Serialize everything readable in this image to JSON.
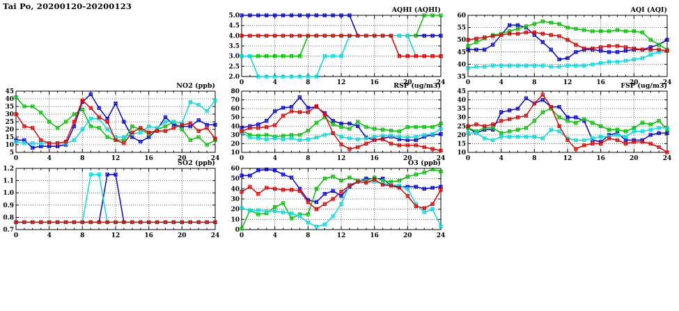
{
  "page_title": "Tai Po, 20200120-20200123",
  "station": "Tai Po",
  "date_range": "20200120-20200123",
  "colors": {
    "blue": "#0000e8",
    "red": "#e60000",
    "green": "#00c400",
    "cyan": "#00dede"
  },
  "x_axis": {
    "unit": "hour",
    "min": 0,
    "max": 24,
    "tick_labels": [
      0,
      4,
      8,
      12,
      16,
      20,
      24
    ]
  },
  "chart_data": [
    {
      "type": "line",
      "title": "AQHI (AQHI)",
      "xmin": 0,
      "xmax": 24,
      "xstep": 4,
      "ymin": 2.0,
      "ymax": 5.0,
      "ystep": 0.5,
      "ydp": 1,
      "series": [
        {
          "id": "blue",
          "color": "#0000e8",
          "values": [
            5,
            5,
            5,
            5,
            5,
            5,
            5,
            5,
            5,
            5,
            5,
            5,
            5,
            5,
            4,
            4,
            4,
            4,
            4,
            4,
            4,
            4,
            4,
            4,
            4
          ]
        },
        {
          "id": "green",
          "color": "#00c400",
          "values": [
            3,
            3,
            3,
            3,
            3,
            3,
            3,
            3,
            4,
            4,
            4,
            4,
            4,
            4,
            4,
            4,
            4,
            4,
            4,
            4,
            4,
            4,
            5,
            5,
            5
          ]
        },
        {
          "id": "cyan",
          "color": "#00dede",
          "values": [
            3,
            3,
            2,
            2,
            2,
            2,
            2,
            2,
            2,
            2,
            3,
            3,
            3,
            4,
            4,
            4,
            4,
            4,
            4,
            4,
            4,
            3,
            3,
            3,
            3
          ]
        },
        {
          "id": "red",
          "color": "#e60000",
          "values": [
            4,
            4,
            4,
            4,
            4,
            4,
            4,
            4,
            4,
            4,
            4,
            4,
            4,
            4,
            4,
            4,
            4,
            4,
            4,
            3,
            3,
            3,
            3,
            3,
            3
          ]
        }
      ]
    },
    {
      "type": "line",
      "title": "AQI (AQI)",
      "xmin": 0,
      "xmax": 24,
      "xstep": 4,
      "ymin": 35,
      "ymax": 60,
      "ystep": 5,
      "ydp": 0,
      "series": [
        {
          "id": "blue",
          "color": "#0000e8",
          "values": [
            46,
            46,
            46,
            48,
            52,
            56,
            56,
            55,
            52,
            49,
            46,
            42,
            42.5,
            45,
            46,
            46,
            45.5,
            45,
            45,
            45.5,
            46,
            46,
            47,
            48,
            50
          ]
        },
        {
          "id": "green",
          "color": "#00c400",
          "values": [
            47.5,
            49,
            50.5,
            52,
            52.5,
            53.5,
            54.5,
            55.5,
            56.5,
            57.5,
            57,
            56.5,
            55,
            54.5,
            54,
            53.5,
            53.5,
            53.5,
            54,
            53.5,
            53.5,
            53,
            50,
            48,
            46
          ]
        },
        {
          "id": "cyan",
          "color": "#00dede",
          "values": [
            38.5,
            39,
            39,
            39.5,
            39.5,
            39.5,
            39.5,
            39.5,
            39.5,
            39.5,
            39,
            39,
            39.5,
            39.5,
            39.5,
            40,
            40.5,
            41,
            41,
            41.5,
            42,
            42.5,
            44,
            45,
            45.5
          ]
        },
        {
          "id": "red",
          "color": "#e60000",
          "values": [
            50,
            50.5,
            51,
            51.5,
            52,
            52.5,
            52.5,
            53,
            53,
            52.5,
            52,
            51.5,
            50,
            48,
            46.5,
            46.5,
            47,
            47.5,
            47.5,
            47,
            46.5,
            46,
            46,
            46,
            45.5
          ]
        }
      ]
    },
    {
      "type": "line",
      "title": "NO2 (ppb)",
      "xmin": 0,
      "xmax": 24,
      "xstep": 4,
      "ymin": 5,
      "ymax": 45,
      "ystep": 5,
      "ydp": 0,
      "series": [
        {
          "id": "blue",
          "color": "#0000e8",
          "values": [
            13,
            13,
            8,
            9,
            9,
            9,
            10,
            22,
            38,
            43,
            34,
            27,
            37,
            25,
            15,
            12,
            15,
            20,
            28,
            23,
            22,
            22,
            26,
            23,
            23
          ]
        },
        {
          "id": "green",
          "color": "#00c400",
          "values": [
            41,
            35,
            35,
            31,
            25,
            21,
            25,
            30,
            33,
            22,
            21,
            15,
            13,
            13,
            22,
            20,
            17,
            20,
            22,
            25,
            20,
            13,
            15,
            10,
            13
          ]
        },
        {
          "id": "cyan",
          "color": "#00dede",
          "values": [
            12,
            11,
            11,
            11,
            11,
            11,
            11,
            13,
            20,
            27,
            27,
            20,
            15,
            15,
            17,
            18,
            22,
            21,
            25,
            25,
            24,
            38,
            36,
            32,
            39
          ]
        },
        {
          "id": "red",
          "color": "#e60000",
          "values": [
            30,
            22,
            21,
            13,
            11,
            11,
            12,
            25,
            39,
            34,
            28,
            25,
            13,
            11,
            18,
            21,
            18,
            19,
            19,
            21,
            23,
            24,
            19,
            21,
            14
          ]
        }
      ]
    },
    {
      "type": "line",
      "title": "RSP (ug/m3)",
      "xmin": 0,
      "xmax": 24,
      "xstep": 4,
      "ymin": 10,
      "ymax": 80,
      "ystep": 10,
      "ydp": 0,
      "series": [
        {
          "id": "blue",
          "color": "#0000e8",
          "values": [
            38,
            40,
            42,
            46,
            57,
            61,
            62,
            73,
            61,
            62,
            55,
            46,
            43,
            43,
            40,
            27,
            24,
            26,
            28,
            25,
            24,
            24,
            28,
            30,
            31
          ]
        },
        {
          "id": "green",
          "color": "#00c400",
          "values": [
            35,
            30,
            29,
            30,
            28,
            29,
            30,
            30,
            35,
            44,
            50,
            42,
            39,
            37,
            45,
            39,
            37,
            36,
            35,
            34,
            39,
            39,
            39,
            39,
            43
          ]
        },
        {
          "id": "cyan",
          "color": "#00dede",
          "values": [
            33,
            27,
            26,
            25,
            26,
            25,
            26,
            24,
            25,
            27,
            30,
            32,
            28,
            26,
            25,
            26,
            28,
            29,
            29,
            28,
            27,
            28,
            30,
            31,
            37
          ]
        },
        {
          "id": "red",
          "color": "#e60000",
          "values": [
            34,
            38,
            38,
            39,
            41,
            52,
            57,
            56,
            56,
            63,
            53,
            32,
            19,
            14,
            16,
            20,
            24,
            25,
            20,
            18,
            18,
            18,
            16,
            14,
            12
          ]
        }
      ]
    },
    {
      "type": "line",
      "title": "FSP (ug/m3)",
      "xmin": 0,
      "xmax": 24,
      "xstep": 4,
      "ymin": 10,
      "ymax": 45,
      "ystep": 5,
      "ydp": 0,
      "series": [
        {
          "id": "blue",
          "color": "#0000e8",
          "values": [
            24,
            21,
            23,
            23,
            33,
            34,
            35,
            41,
            38,
            40,
            36,
            36,
            30,
            30,
            28,
            17,
            16,
            20,
            21,
            17,
            17,
            17,
            20,
            21,
            21
          ]
        },
        {
          "id": "green",
          "color": "#00c400",
          "values": [
            24,
            22,
            24,
            24,
            21,
            22,
            23,
            24,
            28,
            33,
            35,
            30,
            28,
            27,
            29,
            27,
            25,
            23,
            23,
            22,
            24,
            27,
            26,
            28,
            23
          ]
        },
        {
          "id": "cyan",
          "color": "#00dede",
          "values": [
            21,
            21,
            18,
            17,
            19,
            19,
            19,
            19,
            19,
            18,
            23,
            22,
            18,
            17,
            17,
            18,
            19,
            19,
            20,
            19,
            22,
            22,
            23,
            24,
            24
          ]
        },
        {
          "id": "red",
          "color": "#e60000",
          "values": [
            25,
            26,
            25,
            26,
            28,
            29,
            30,
            31,
            38,
            43,
            36,
            25,
            17,
            12,
            14,
            15,
            15,
            18,
            17,
            15,
            16,
            16,
            15,
            13,
            10
          ]
        }
      ]
    },
    {
      "type": "line",
      "title": "SO2 (ppb)",
      "xmin": 0,
      "xmax": 24,
      "xstep": 4,
      "ymin": 0.7,
      "ymax": 1.2,
      "ystep": 0.1,
      "ydp": 1,
      "series": [
        {
          "id": "blue",
          "color": "#0000e8",
          "values": [
            0.76,
            0.76,
            0.76,
            0.76,
            0.76,
            0.76,
            0.76,
            0.76,
            0.76,
            0.76,
            0.76,
            1.15,
            1.15,
            0.76,
            0.76,
            0.76,
            0.76,
            0.76,
            0.76,
            0.76,
            0.76,
            0.76,
            0.76,
            0.76,
            0.76
          ]
        },
        {
          "id": "green",
          "color": "#00c400",
          "values": [
            0.76,
            0.76,
            0.76,
            0.76,
            0.76,
            0.76,
            0.76,
            0.76,
            0.76,
            0.76,
            0.76,
            0.76,
            0.76,
            0.76,
            0.76,
            0.76,
            0.76,
            0.76,
            0.76,
            0.76,
            0.76,
            0.76,
            0.76,
            0.76,
            0.76
          ]
        },
        {
          "id": "cyan",
          "color": "#00dede",
          "values": [
            0.76,
            0.76,
            0.76,
            0.76,
            0.76,
            0.76,
            0.76,
            0.76,
            0.76,
            1.15,
            1.15,
            0.76,
            0.76,
            0.76,
            0.76,
            0.76,
            0.76,
            0.76,
            0.76,
            0.76,
            0.76,
            0.76,
            0.76,
            0.76,
            0.76
          ]
        },
        {
          "id": "red",
          "color": "#e60000",
          "values": [
            0.76,
            0.76,
            0.76,
            0.76,
            0.76,
            0.76,
            0.76,
            0.76,
            0.76,
            0.76,
            0.76,
            0.76,
            0.76,
            0.76,
            0.76,
            0.76,
            0.76,
            0.76,
            0.76,
            0.76,
            0.76,
            0.76,
            0.76,
            0.76,
            0.76
          ]
        }
      ]
    },
    {
      "type": "line",
      "title": "O3 (ppb)",
      "xmin": 0,
      "xmax": 24,
      "xstep": 4,
      "ymin": 0,
      "ymax": 60,
      "ystep": 10,
      "ydp": 0,
      "series": [
        {
          "id": "blue",
          "color": "#0000e8",
          "values": [
            53,
            53,
            58,
            59,
            58,
            54,
            51,
            40,
            29,
            27,
            35,
            38,
            33,
            42,
            47,
            50,
            50,
            50,
            43,
            42,
            42,
            42,
            40,
            41,
            42
          ]
        },
        {
          "id": "green",
          "color": "#00c400",
          "values": [
            1,
            19,
            15,
            16,
            22,
            26,
            11,
            15,
            15,
            40,
            50,
            52,
            48,
            51,
            48,
            48,
            51,
            48,
            47,
            48,
            52,
            54,
            56,
            59,
            57
          ]
        },
        {
          "id": "cyan",
          "color": "#00dede",
          "values": [
            21,
            19,
            19,
            18,
            18,
            17,
            16,
            13,
            7,
            3,
            5,
            13,
            25,
            44,
            47,
            46,
            47,
            45,
            44,
            43,
            40,
            25,
            17,
            20,
            3
          ]
        },
        {
          "id": "red",
          "color": "#e60000",
          "values": [
            37,
            42,
            35,
            41,
            40,
            39,
            39,
            38,
            27,
            20,
            25,
            30,
            37,
            43,
            47,
            46,
            49,
            44,
            43,
            41,
            33,
            23,
            21,
            25,
            39
          ]
        }
      ]
    }
  ]
}
